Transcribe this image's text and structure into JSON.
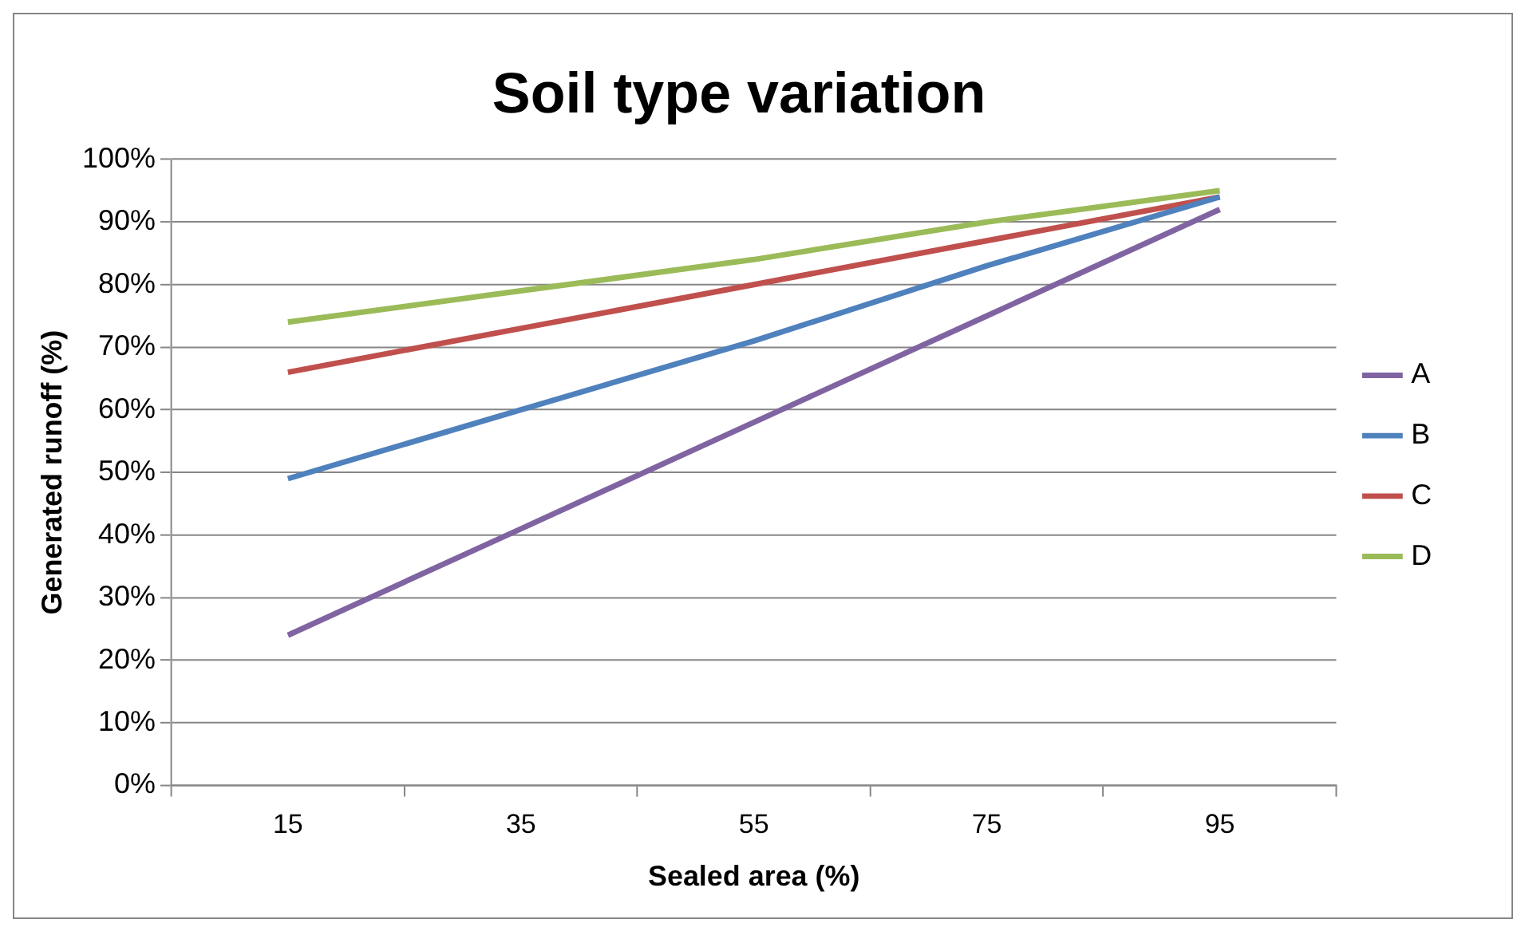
{
  "chart_data": {
    "type": "line",
    "title": "Soil type variation",
    "xlabel": "Sealed area (%)",
    "ylabel": "Generated runoff (%)",
    "categories": [
      "15",
      "35",
      "55",
      "75",
      "95"
    ],
    "series": [
      {
        "name": "A",
        "color": "#8064a2",
        "values": [
          24,
          41,
          58,
          75,
          92
        ]
      },
      {
        "name": "B",
        "color": "#4f81bd",
        "values": [
          49,
          60,
          71,
          83,
          94
        ]
      },
      {
        "name": "C",
        "color": "#c0504d",
        "values": [
          66,
          73,
          80,
          87,
          94
        ]
      },
      {
        "name": "D",
        "color": "#9bbb59",
        "values": [
          74,
          79,
          84,
          90,
          95
        ]
      }
    ],
    "ylim": [
      0,
      100
    ],
    "yticks": [
      {
        "value": 0,
        "label": "0%"
      },
      {
        "value": 10,
        "label": "10%"
      },
      {
        "value": 20,
        "label": "20%"
      },
      {
        "value": 30,
        "label": "30%"
      },
      {
        "value": 40,
        "label": "40%"
      },
      {
        "value": 50,
        "label": "50%"
      },
      {
        "value": 60,
        "label": "60%"
      },
      {
        "value": 70,
        "label": "70%"
      },
      {
        "value": 80,
        "label": "80%"
      },
      {
        "value": 90,
        "label": "90%"
      },
      {
        "value": 100,
        "label": "100%"
      }
    ],
    "grid": "y",
    "legend": "right",
    "marker": "none",
    "line_style": "solid"
  }
}
